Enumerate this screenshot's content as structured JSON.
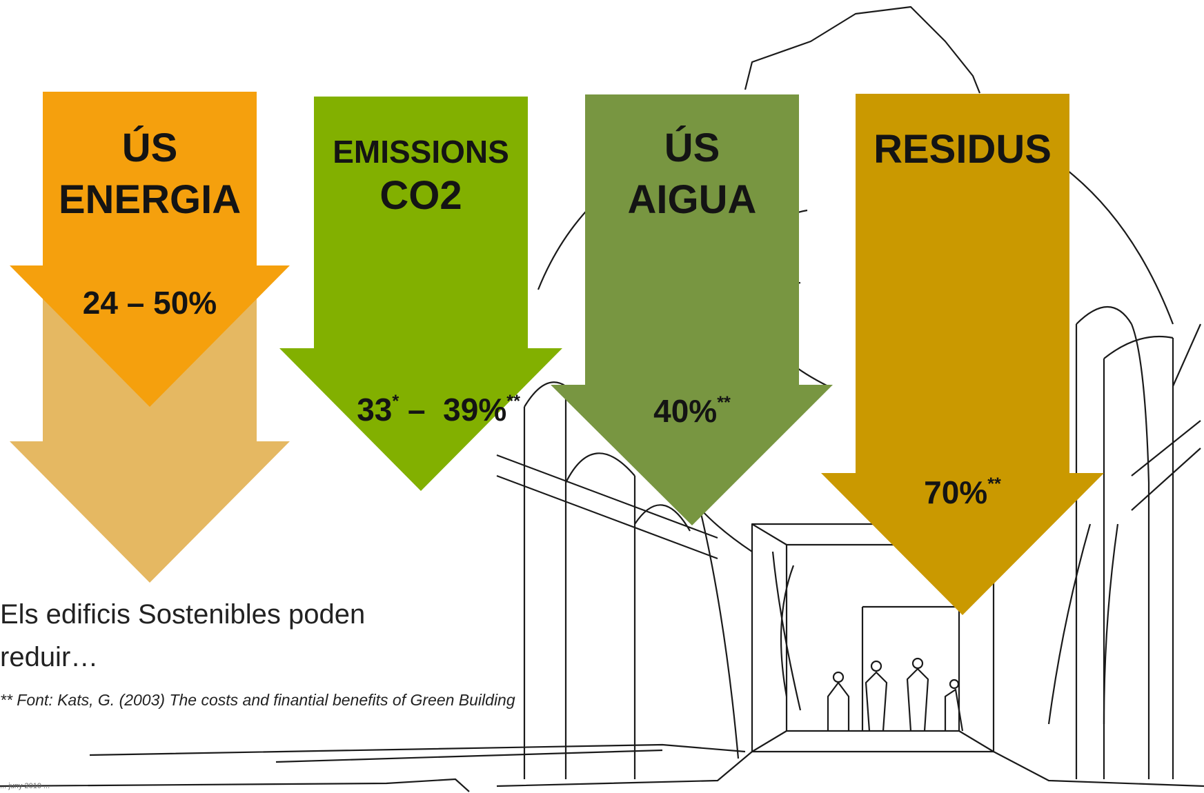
{
  "colors": {
    "energy": "#f5a00d",
    "energy_light": "#e5b862",
    "emissions": "#82b000",
    "water": "#789641",
    "waste": "#ca9900",
    "sketch": "#1a1a1a"
  },
  "arrows": [
    {
      "id": "energy",
      "title_line1": "ÚS",
      "title_line2": "ENERGIA",
      "value": "24 – 50%",
      "marks": ""
    },
    {
      "id": "emissions",
      "title_line1": "EMISSIONS",
      "title_line2": "CO2",
      "value_a": "33",
      "mark_a": "*",
      "value_sep": " –  ",
      "value_b": "39%",
      "mark_b": "**"
    },
    {
      "id": "water",
      "title_line1": "ÚS",
      "title_line2": "AIGUA",
      "value": "40%",
      "marks": "**"
    },
    {
      "id": "waste",
      "title_line1": "RESIDUS",
      "value": "70%",
      "marks": "**"
    }
  ],
  "caption": {
    "line1": "Els edificis Sostenibles poden",
    "line2": "reduir…"
  },
  "source": "** Font: Kats, G. (2003) The costs and finantial benefits of Green Building",
  "footer": "... juny 2010 ..."
}
